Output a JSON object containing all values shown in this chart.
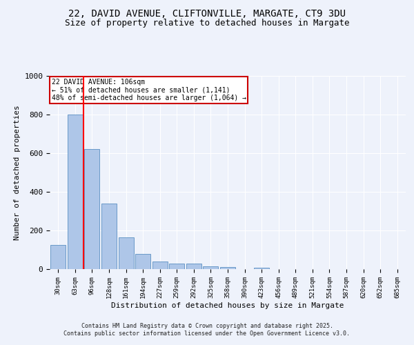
{
  "title1": "22, DAVID AVENUE, CLIFTONVILLE, MARGATE, CT9 3DU",
  "title2": "Size of property relative to detached houses in Margate",
  "xlabel": "Distribution of detached houses by size in Margate",
  "ylabel": "Number of detached properties",
  "categories": [
    "30sqm",
    "63sqm",
    "96sqm",
    "128sqm",
    "161sqm",
    "194sqm",
    "227sqm",
    "259sqm",
    "292sqm",
    "325sqm",
    "358sqm",
    "390sqm",
    "423sqm",
    "456sqm",
    "489sqm",
    "521sqm",
    "554sqm",
    "587sqm",
    "620sqm",
    "652sqm",
    "685sqm"
  ],
  "values": [
    125,
    800,
    620,
    338,
    165,
    80,
    40,
    28,
    28,
    15,
    10,
    0,
    8,
    0,
    0,
    0,
    0,
    0,
    0,
    0,
    0
  ],
  "bar_color": "#aec6e8",
  "bar_edge_color": "#5a8fc2",
  "red_line_x": 1.5,
  "annotation_title": "22 DAVID AVENUE: 106sqm",
  "annotation_line1": "← 51% of detached houses are smaller (1,141)",
  "annotation_line2": "48% of semi-detached houses are larger (1,064) →",
  "annotation_box_color": "#ffffff",
  "annotation_box_edge": "#cc0000",
  "footer1": "Contains HM Land Registry data © Crown copyright and database right 2025.",
  "footer2": "Contains public sector information licensed under the Open Government Licence v3.0.",
  "ylim": [
    0,
    1000
  ],
  "bg_color": "#eef2fb",
  "grid_color": "#ffffff",
  "title_fontsize": 10,
  "subtitle_fontsize": 9
}
